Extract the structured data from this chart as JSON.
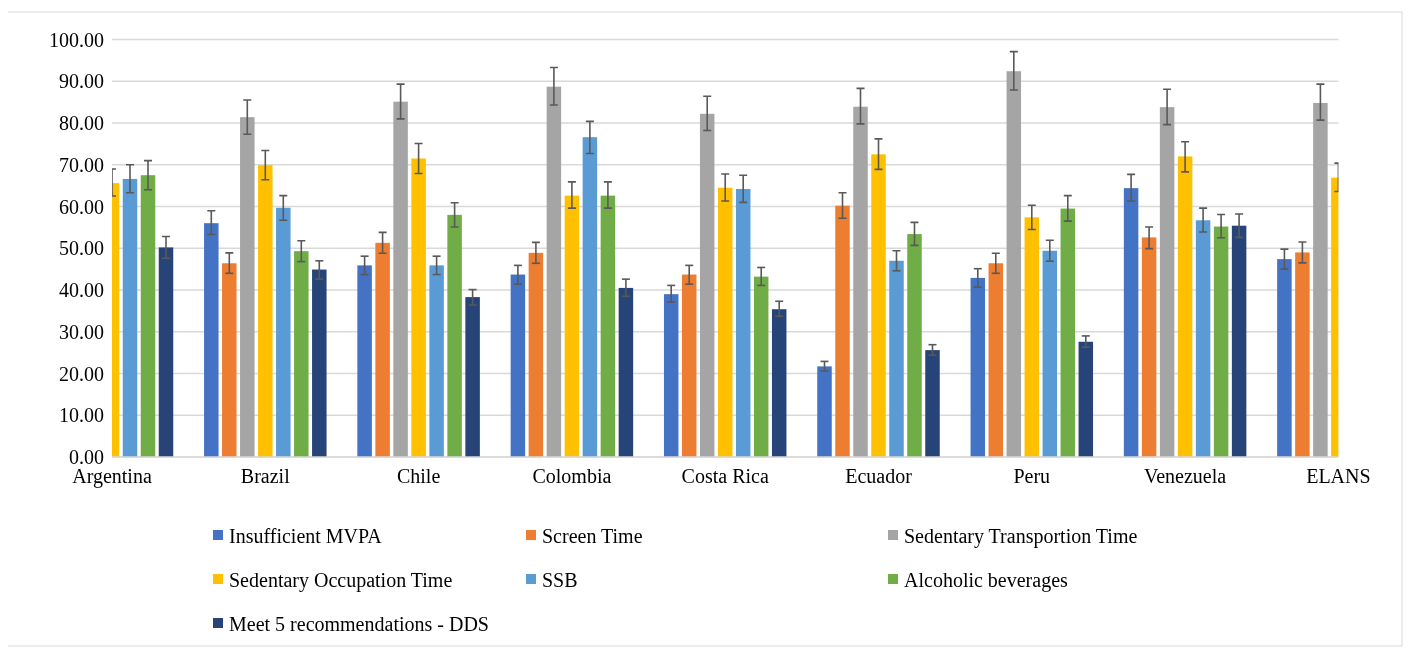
{
  "chart_data": {
    "type": "bar",
    "categories": [
      "Argentina",
      "Brazil",
      "Chile",
      "Colombia",
      "Costa Rica",
      "Ecuador",
      "Peru",
      "Venezuela",
      "ELANS"
    ],
    "series": [
      {
        "name": "Insufficient MVPA",
        "color": "#4472c4",
        "values": [
          null,
          56.0,
          45.9,
          43.7,
          39.0,
          21.7,
          42.9,
          64.4,
          47.4
        ],
        "errors": [
          null,
          [
            53.3,
            59.0
          ],
          [
            43.7,
            48.1
          ],
          [
            41.4,
            45.9
          ],
          [
            37.1,
            41.1
          ],
          [
            20.6,
            22.9
          ],
          [
            40.7,
            45.1
          ],
          [
            61.3,
            67.7
          ],
          [
            45.0,
            49.8
          ]
        ]
      },
      {
        "name": "Screen Time",
        "color": "#ed7d31",
        "values": [
          null,
          46.4,
          51.3,
          48.9,
          43.7,
          60.2,
          46.4,
          52.6,
          49.0
        ],
        "errors": [
          null,
          [
            44.0,
            48.9
          ],
          [
            48.8,
            53.8
          ],
          [
            46.4,
            51.4
          ],
          [
            41.4,
            45.9
          ],
          [
            57.2,
            63.3
          ],
          [
            44.0,
            48.8
          ],
          [
            49.9,
            55.1
          ],
          [
            46.5,
            51.5
          ]
        ]
      },
      {
        "name": "Sedentary Transportion Time",
        "color": "#a5a5a5",
        "values": [
          null,
          81.4,
          85.1,
          88.7,
          82.2,
          83.9,
          92.4,
          83.8,
          84.8
        ],
        "errors": [
          null,
          [
            77.3,
            85.5
          ],
          [
            81.0,
            89.3
          ],
          [
            84.3,
            93.3
          ],
          [
            78.2,
            86.4
          ],
          [
            79.8,
            88.3
          ],
          [
            87.9,
            97.1
          ],
          [
            79.6,
            88.1
          ],
          [
            80.7,
            89.3
          ]
        ]
      },
      {
        "name": "Sedentary Occupation Time",
        "color": "#ffc000",
        "values": [
          65.6,
          69.9,
          71.5,
          62.6,
          64.5,
          72.5,
          57.4,
          72.0,
          66.9
        ],
        "errors": [
          [
            62.5,
            69.0
          ],
          [
            66.4,
            73.4
          ],
          [
            67.9,
            75.1
          ],
          [
            59.6,
            65.9
          ],
          [
            61.3,
            67.8
          ],
          [
            68.9,
            76.2
          ],
          [
            54.5,
            60.3
          ],
          [
            68.3,
            75.5
          ],
          [
            63.6,
            70.4
          ]
        ]
      },
      {
        "name": "SSB",
        "color": "#5b9bd5",
        "values": [
          66.6,
          59.7,
          45.9,
          76.6,
          64.2,
          47.0,
          49.4,
          56.7,
          null
        ],
        "errors": [
          [
            63.3,
            70.0
          ],
          [
            56.7,
            62.6
          ],
          [
            43.7,
            48.1
          ],
          [
            72.7,
            80.4
          ],
          [
            61.0,
            67.5
          ],
          [
            44.6,
            49.4
          ],
          [
            46.9,
            51.9
          ],
          [
            53.9,
            59.6
          ],
          null
        ]
      },
      {
        "name": "Alcoholic beverages",
        "color": "#70ad47",
        "values": [
          67.5,
          49.3,
          58.0,
          62.6,
          43.2,
          53.4,
          59.5,
          55.2,
          null
        ],
        "errors": [
          [
            64.0,
            71.0
          ],
          [
            46.8,
            51.8
          ],
          [
            55.1,
            60.9
          ],
          [
            59.6,
            65.9
          ],
          [
            41.1,
            45.4
          ],
          [
            50.7,
            56.2
          ],
          [
            56.5,
            62.6
          ],
          [
            52.5,
            58.1
          ],
          null
        ]
      },
      {
        "name": "Meet 5 recommendations - DDS",
        "color": "#264478",
        "values": [
          50.2,
          44.9,
          38.3,
          40.5,
          35.4,
          25.6,
          27.6,
          55.4,
          null
        ],
        "errors": [
          [
            47.6,
            52.8
          ],
          [
            42.6,
            47.0
          ],
          [
            36.4,
            40.1
          ],
          [
            38.5,
            42.6
          ],
          [
            33.7,
            37.3
          ],
          [
            24.4,
            26.9
          ],
          [
            26.3,
            29.0
          ],
          [
            52.6,
            58.2
          ],
          null
        ]
      }
    ],
    "ylim": [
      0,
      100
    ],
    "yticks": [
      {
        "value": 0,
        "label": "0.00"
      },
      {
        "value": 10,
        "label": "10.00"
      },
      {
        "value": 20,
        "label": "20.00"
      },
      {
        "value": 30,
        "label": "30.00"
      },
      {
        "value": 40,
        "label": "40.00"
      },
      {
        "value": 50,
        "label": "50.00"
      },
      {
        "value": 60,
        "label": "60.00"
      },
      {
        "value": 70,
        "label": "70.00"
      },
      {
        "value": 80,
        "label": "80.00"
      },
      {
        "value": 90,
        "label": "90.00"
      },
      {
        "value": 100,
        "label": "100.00"
      }
    ],
    "grid": "y",
    "legend": "bottom"
  }
}
